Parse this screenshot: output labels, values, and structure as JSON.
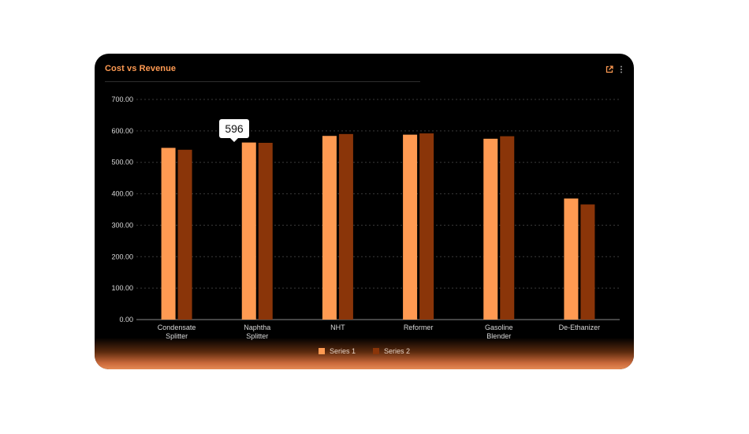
{
  "card": {
    "title": "Cost vs Revenue"
  },
  "icons": {
    "export": "external-link-icon",
    "menu": "kebab-menu-icon"
  },
  "colors": {
    "title": "#ff9a52",
    "series1": "#ff9a52",
    "series2": "#8a3509",
    "axis_text": "#d9d9d9",
    "grid": "#3a3a3a"
  },
  "tooltip": {
    "value": "596"
  },
  "chart_data": {
    "type": "bar",
    "categories": [
      [
        "Condensate",
        "Splitter"
      ],
      [
        "Naphtha",
        "Splitter"
      ],
      [
        "NHT"
      ],
      [
        "Reformer"
      ],
      [
        "Gasoline",
        "Blender"
      ],
      [
        "De-Ethanizer"
      ]
    ],
    "series": [
      {
        "name": "Series 1",
        "values": [
          546,
          563,
          584,
          588,
          575,
          385
        ]
      },
      {
        "name": "Series 2",
        "values": [
          540,
          562,
          590,
          592,
          583,
          366
        ]
      }
    ],
    "ylim": [
      0,
      700
    ],
    "yticks": [
      "0.00",
      "100.00",
      "200.00",
      "300.00",
      "400.00",
      "500.00",
      "600.00",
      "700.00"
    ],
    "grid": true,
    "legend_position": "bottom-center"
  }
}
